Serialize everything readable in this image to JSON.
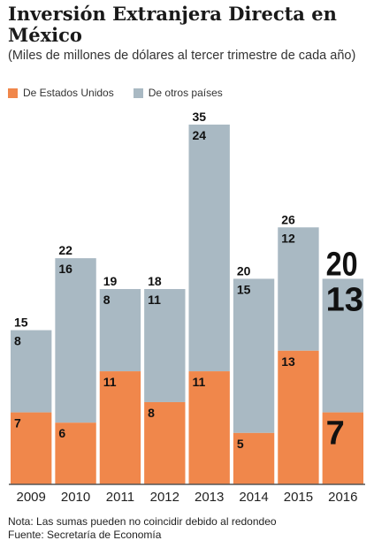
{
  "title": "Inversión Extranjera Directa en México",
  "subtitle": "(Miles de millones de dólares al tercer trimestre de cada año)",
  "legend": {
    "us": "De Estados Unidos",
    "other": "De otros países"
  },
  "colors": {
    "us": "#f0874b",
    "other": "#a9b9c3",
    "axis": "#555555"
  },
  "notes": {
    "nota": "Nota: Las sumas pueden no coincidir debido al redondeo",
    "fuente": "Fuente: Secretaría de Economía"
  },
  "chart_data": {
    "type": "bar",
    "stacked": true,
    "categories": [
      "2009",
      "2010",
      "2011",
      "2012",
      "2013",
      "2014",
      "2015",
      "2016"
    ],
    "series": [
      {
        "name": "De Estados Unidos",
        "values": [
          7,
          6,
          11,
          8,
          11,
          5,
          13,
          7
        ]
      },
      {
        "name": "De otros países",
        "values": [
          8,
          16,
          8,
          11,
          24,
          15,
          12,
          13
        ]
      }
    ],
    "totals": [
      15,
      22,
      19,
      18,
      35,
      20,
      26,
      20
    ],
    "highlight_category": "2016",
    "ylim": [
      0,
      35
    ],
    "grid": false,
    "legend_position": "top-left",
    "title": "Inversión Extranjera Directa en México",
    "xlabel": "",
    "ylabel": ""
  }
}
